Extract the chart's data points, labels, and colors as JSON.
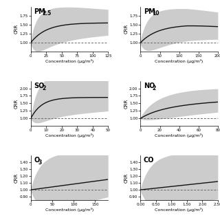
{
  "panels": [
    {
      "title": "PM",
      "title_sub": "2.5",
      "xmax": 125,
      "xlim": [
        0,
        125
      ],
      "ylim": [
        0.75,
        2.0
      ],
      "yticks": [
        1.0,
        1.25,
        1.5,
        1.75
      ],
      "xticks": [
        0,
        25,
        50,
        75,
        100,
        125
      ],
      "curve_type": "pm25",
      "ylabel_visible": true
    },
    {
      "title": "PM",
      "title_sub": "10",
      "xmax": 200,
      "xlim": [
        0,
        200
      ],
      "ylim": [
        0.75,
        2.0
      ],
      "yticks": [
        1.0,
        1.25,
        1.5,
        1.75
      ],
      "xticks": [
        0,
        50,
        100,
        150,
        200
      ],
      "curve_type": "pm10",
      "ylabel_visible": true
    },
    {
      "title": "SO",
      "title_sub": "2",
      "xmax": 50,
      "xlim": [
        0,
        50
      ],
      "ylim": [
        0.75,
        2.25
      ],
      "yticks": [
        1.0,
        1.25,
        1.5,
        1.75,
        2.0
      ],
      "xticks": [
        0,
        10,
        20,
        30,
        40,
        50
      ],
      "curve_type": "so2",
      "ylabel_visible": true
    },
    {
      "title": "NO",
      "title_sub": "2",
      "xmax": 80,
      "xlim": [
        0,
        80
      ],
      "ylim": [
        0.75,
        2.25
      ],
      "yticks": [
        1.0,
        1.25,
        1.5,
        1.75,
        2.0
      ],
      "xticks": [
        0,
        20,
        40,
        60,
        80
      ],
      "curve_type": "no2",
      "ylabel_visible": true
    },
    {
      "title": "O",
      "title_sub": "3",
      "xmax": 180,
      "xlim": [
        0,
        180
      ],
      "ylim": [
        0.85,
        1.5
      ],
      "yticks": [
        0.9,
        1.0,
        1.1,
        1.2,
        1.3,
        1.4
      ],
      "xticks": [
        0,
        50,
        100,
        150
      ],
      "curve_type": "o3",
      "ylabel_visible": true
    },
    {
      "title": "CO",
      "title_sub": "",
      "xmax": 2.5,
      "xlim": [
        0,
        2.5
      ],
      "ylim": [
        0.85,
        1.5
      ],
      "yticks": [
        0.9,
        1.0,
        1.1,
        1.2,
        1.3,
        1.4
      ],
      "xticks": [
        0.0,
        0.5,
        1.0,
        1.5,
        2.0,
        2.5
      ],
      "curve_type": "co",
      "ylabel_visible": true
    }
  ],
  "ylabel": "CRR",
  "xlabel": "Concentration (μg/m³)",
  "line_color": "#111111",
  "ci_color": "#cccccc",
  "dashed_color": "#666666",
  "background_color": "#ffffff"
}
